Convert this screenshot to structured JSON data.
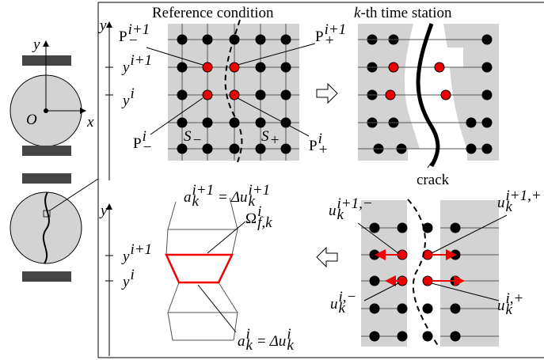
{
  "specimen": {
    "y_axis": "y",
    "x_axis": "x",
    "origin": "O"
  },
  "reference": {
    "title": "Reference condition",
    "y_axis": "y",
    "y_upper": {
      "base": "y",
      "sup": "i+1"
    },
    "y_lower": {
      "base": "y",
      "sup": "i"
    },
    "p_minus_upper": {
      "base": "P",
      "sub": "−",
      "sup": "i+1"
    },
    "p_plus_upper": {
      "base": "P",
      "sub": "+",
      "sup": "i+1"
    },
    "p_minus_lower": {
      "base": "P",
      "sub": "−",
      "sup": "i"
    },
    "p_plus_lower": {
      "base": "P",
      "sub": "+",
      "sup": "i"
    },
    "s_minus": {
      "base": "S",
      "sub": "−"
    },
    "s_plus": {
      "base": "S",
      "sub": "+"
    }
  },
  "time_station": {
    "title_k": "k",
    "title_rest": "-th time station",
    "crack": "crack"
  },
  "opening": {
    "y_axis": "y",
    "y_upper": {
      "base": "y",
      "sup": "i+1"
    },
    "y_lower": {
      "base": "y",
      "sup": "i"
    },
    "a_upper": {
      "lhs": {
        "base": "a",
        "sub": "k",
        "sup": "i+1"
      },
      "eq": "=",
      "rhs": {
        "base": "Δu",
        "sub": "k",
        "sup": "i+1"
      }
    },
    "omega": {
      "base": "Ω",
      "sub": "f,k",
      "sup": "i"
    },
    "a_lower": {
      "lhs": {
        "base": "a",
        "sub": "k",
        "sup": "i"
      },
      "eq": "=",
      "rhs": {
        "base": "Δu",
        "sub": "k",
        "sup": "i"
      }
    }
  },
  "displacement": {
    "u_upper_minus": {
      "base": "u",
      "sub": "k",
      "sup": "i+1,−"
    },
    "u_upper_plus": {
      "base": "u",
      "sub": "k",
      "sup": "i+1,+"
    },
    "u_lower_minus": {
      "base": "u",
      "sub": "k",
      "sup": "i,−"
    },
    "u_lower_plus": {
      "base": "u",
      "sub": "k",
      "sup": "i,+"
    }
  }
}
